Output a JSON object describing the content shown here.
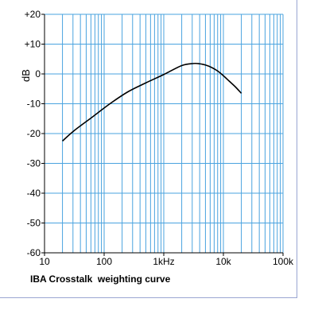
{
  "caption": "IBA Crosstalk  weighting curve",
  "chart_data": {
    "type": "line",
    "title": "IBA Crosstalk  weighting curve",
    "xlabel": "",
    "ylabel": "dB",
    "x_scale": "log",
    "xlim": [
      10,
      100000
    ],
    "ylim": [
      -60,
      20
    ],
    "x_ticks": [
      {
        "value": 10,
        "label": "10"
      },
      {
        "value": 100,
        "label": "100"
      },
      {
        "value": 1000,
        "label": "1kHz"
      },
      {
        "value": 10000,
        "label": "10k"
      },
      {
        "value": 100000,
        "label": "100k"
      }
    ],
    "y_ticks": [
      {
        "value": 20,
        "label": "+20"
      },
      {
        "value": 10,
        "label": "+10"
      },
      {
        "value": 0,
        "label": "0"
      },
      {
        "value": -10,
        "label": "-10"
      },
      {
        "value": -20,
        "label": "-20"
      },
      {
        "value": -30,
        "label": "-30"
      },
      {
        "value": -40,
        "label": "-40"
      },
      {
        "value": -50,
        "label": "-50"
      },
      {
        "value": -60,
        "label": "-60"
      }
    ],
    "grid": true,
    "colors": {
      "grid": "#4aa3df",
      "axis": "#000000",
      "line": "#000000"
    },
    "series": [
      {
        "x": [
          20,
          31.5,
          63,
          125,
          250,
          500,
          1000,
          2000,
          3150,
          4000,
          5000,
          6300,
          8000,
          10000,
          12500,
          16000,
          20000
        ],
        "y": [
          -22.5,
          -19,
          -14.5,
          -10,
          -6,
          -3,
          -0.2,
          2.8,
          3.5,
          3.4,
          3.0,
          2.2,
          1.0,
          -0.6,
          -2.4,
          -4.4,
          -6.5
        ]
      }
    ]
  }
}
